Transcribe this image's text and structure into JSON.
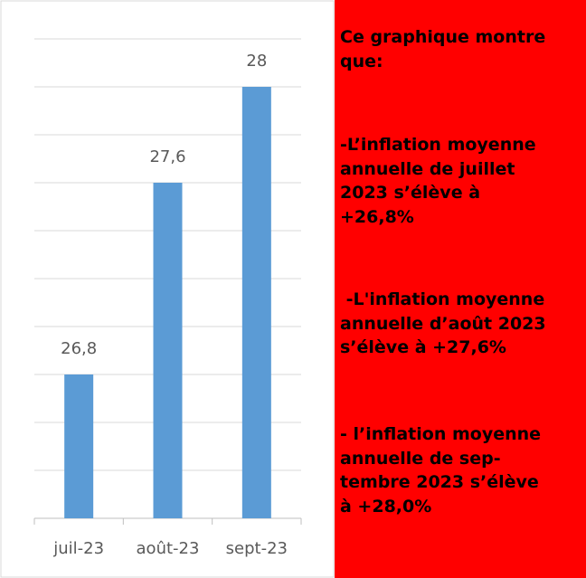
{
  "chart_data": {
    "type": "bar",
    "categories": [
      "juil-23",
      "août-23",
      "sept-23"
    ],
    "values": [
      26.8,
      27.6,
      28
    ],
    "value_labels": [
      "26,8",
      "27,6",
      "28"
    ],
    "color": "#5b9bd5",
    "ylim": [
      26.2,
      28.2
    ],
    "yticks": [
      26.2,
      26.4,
      26.6,
      26.8,
      27,
      27.2,
      27.4,
      27.6,
      27.8,
      28,
      28.2
    ],
    "grid": true
  },
  "annotations": [
    [
      "Ce graphique montre",
      "que:"
    ],
    [
      "-L’inflation moyenne",
      "annuelle de juillet",
      "2023 s’élève à",
      "+26,8%"
    ],
    [
      " -L'inflation moyenne",
      "annuelle d’août 2023",
      "s’élève à +27,6%"
    ],
    [
      "- l’inflation moyenne",
      "annuelle de sep-",
      "tembre 2023 s’élève",
      "à +28,0%"
    ]
  ]
}
